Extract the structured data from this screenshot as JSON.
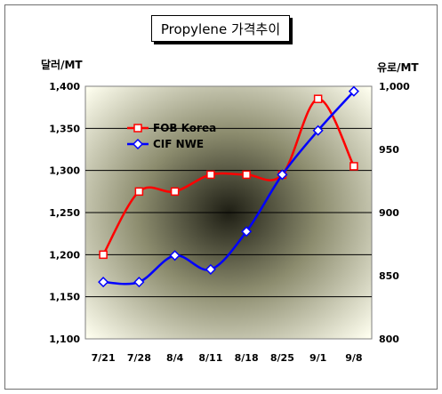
{
  "chart_data": {
    "type": "line",
    "title": "Propylene 가격추이",
    "ylabel_left": "달러/MT",
    "ylabel_right": "유로/MT",
    "categories": [
      "7/21",
      "7/28",
      "8/4",
      "8/11",
      "8/18",
      "8/25",
      "9/1",
      "9/8"
    ],
    "ylim_left": [
      1100,
      1400
    ],
    "yticks_left": [
      1100,
      1150,
      1200,
      1250,
      1300,
      1350,
      1400
    ],
    "ytick_labels_left": [
      "1,100",
      "1,150",
      "1,200",
      "1,250",
      "1,300",
      "1,350",
      "1,400"
    ],
    "ylim_right": [
      800,
      1000
    ],
    "yticks_right": [
      800,
      850,
      900,
      950,
      1000
    ],
    "ytick_labels_right": [
      "800",
      "850",
      "900",
      "950",
      "1,000"
    ],
    "series": [
      {
        "name": "FOB Korea",
        "axis": "left",
        "color": "#ff0000",
        "marker": "square",
        "values": [
          1200,
          1275,
          1275,
          1295,
          1295,
          1295,
          1385,
          1305
        ]
      },
      {
        "name": "CIF NWE",
        "axis": "right",
        "color": "#0000ff",
        "marker": "diamond",
        "values": [
          845,
          845,
          866,
          855,
          885,
          930,
          965,
          996
        ]
      }
    ],
    "grid": true,
    "legend_position": "upper-left"
  }
}
